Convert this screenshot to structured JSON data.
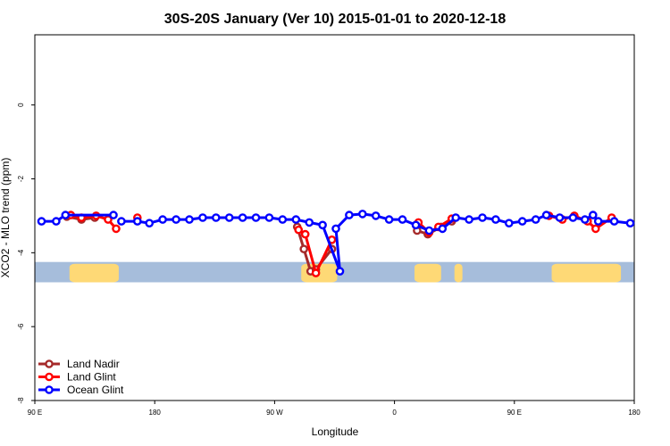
{
  "chart_data": {
    "type": "line",
    "title": "30S-20S January (Ver 10)   2015-01-01 to 2020-12-18",
    "xlabel": "Longitude",
    "ylabel": "XCO2 - MLO trend (ppm)",
    "xlim": [
      90,
      540
    ],
    "ylim": [
      -8,
      1.9
    ],
    "x_ticks": [
      {
        "value": 90,
        "label": "90 E"
      },
      {
        "value": 180,
        "label": "180"
      },
      {
        "value": 270,
        "label": "90 W"
      },
      {
        "value": 360,
        "label": "0"
      },
      {
        "value": 450,
        "label": "90 E"
      },
      {
        "value": 540,
        "label": "180"
      }
    ],
    "y_ticks": [
      {
        "value": 0,
        "label": "0"
      },
      {
        "value": -2,
        "label": "-2"
      },
      {
        "value": -4,
        "label": "-4"
      },
      {
        "value": -6,
        "label": "-6"
      },
      {
        "value": -8,
        "label": "-8"
      }
    ],
    "grid": false,
    "legend_position": "bottom-left",
    "background_map": {
      "y_range": [
        -4.25,
        -4.8
      ],
      "ocean_color": "#a6bddb",
      "land_color": "#fed976",
      "land_spans": [
        [
          116,
          153
        ],
        [
          290,
          317
        ],
        [
          375,
          395
        ],
        [
          405,
          411
        ],
        [
          478,
          530
        ]
      ]
    },
    "series": [
      {
        "name": "Land Nadir",
        "color": "#a52a2a",
        "segments": [
          [
            [
              114,
              -3.02
            ],
            [
              125,
              -3.1
            ],
            [
              135,
              -3.05
            ]
          ],
          [
            [
              287,
              -3.3
            ],
            [
              292,
              -3.9
            ],
            [
              297,
              -4.5
            ],
            [
              301,
              -4.45
            ],
            [
              313,
              -3.9
            ]
          ],
          [
            [
              377,
              -3.4
            ],
            [
              385,
              -3.5
            ],
            [
              395,
              -3.3
            ],
            [
              403,
              -3.15
            ]
          ]
        ]
      },
      {
        "name": "Land Glint",
        "color": "#ff0000",
        "segments": [
          [
            [
              117,
              -2.98
            ],
            [
              125,
              -3.05
            ],
            [
              136,
              -3.0
            ],
            [
              145,
              -3.1
            ],
            [
              151,
              -3.35
            ]
          ],
          [
            [
              167,
              -3.05
            ]
          ],
          [
            [
              288,
              -3.38
            ],
            [
              293,
              -3.5
            ],
            [
              301,
              -4.55
            ],
            [
              313,
              -3.65
            ]
          ],
          [
            [
              378,
              -3.18
            ],
            [
              386,
              -3.45
            ],
            [
              393,
              -3.3
            ],
            [
              403,
              -3.08
            ]
          ],
          [
            [
              476,
              -3.0
            ],
            [
              486,
              -3.1
            ],
            [
              495,
              -3.0
            ],
            [
              505,
              -3.15
            ],
            [
              511,
              -3.35
            ],
            [
              523,
              -3.05
            ]
          ]
        ]
      },
      {
        "name": "Ocean Glint",
        "color": "#0000ff",
        "segments": [
          [
            [
              95,
              -3.15
            ],
            [
              106,
              -3.15
            ],
            [
              113,
              -2.98
            ],
            [
              149,
              -2.98
            ]
          ],
          [
            [
              155,
              -3.15
            ],
            [
              167,
              -3.15
            ],
            [
              176,
              -3.2
            ],
            [
              186,
              -3.1
            ],
            [
              196,
              -3.1
            ],
            [
              206,
              -3.1
            ],
            [
              216,
              -3.05
            ],
            [
              226,
              -3.05
            ],
            [
              236,
              -3.05
            ],
            [
              246,
              -3.05
            ],
            [
              256,
              -3.05
            ],
            [
              266,
              -3.05
            ],
            [
              276,
              -3.1
            ],
            [
              286,
              -3.1
            ],
            [
              296,
              -3.18
            ],
            [
              306,
              -3.25
            ],
            [
              319,
              -4.5
            ],
            [
              316,
              -3.35
            ],
            [
              326,
              -2.98
            ],
            [
              336,
              -2.95
            ],
            [
              346,
              -3.0
            ],
            [
              356,
              -3.1
            ],
            [
              366,
              -3.1
            ],
            [
              376,
              -3.25
            ],
            [
              386,
              -3.4
            ],
            [
              396,
              -3.35
            ],
            [
              406,
              -3.05
            ],
            [
              416,
              -3.1
            ],
            [
              426,
              -3.05
            ],
            [
              436,
              -3.1
            ],
            [
              446,
              -3.2
            ],
            [
              456,
              -3.15
            ],
            [
              466,
              -3.1
            ],
            [
              474,
              -2.98
            ],
            [
              484,
              -3.05
            ],
            [
              494,
              -3.05
            ],
            [
              503,
              -3.1
            ],
            [
              509,
              -2.98
            ],
            [
              513,
              -3.15
            ],
            [
              525,
              -3.15
            ],
            [
              537,
              -3.2
            ]
          ]
        ]
      }
    ]
  }
}
